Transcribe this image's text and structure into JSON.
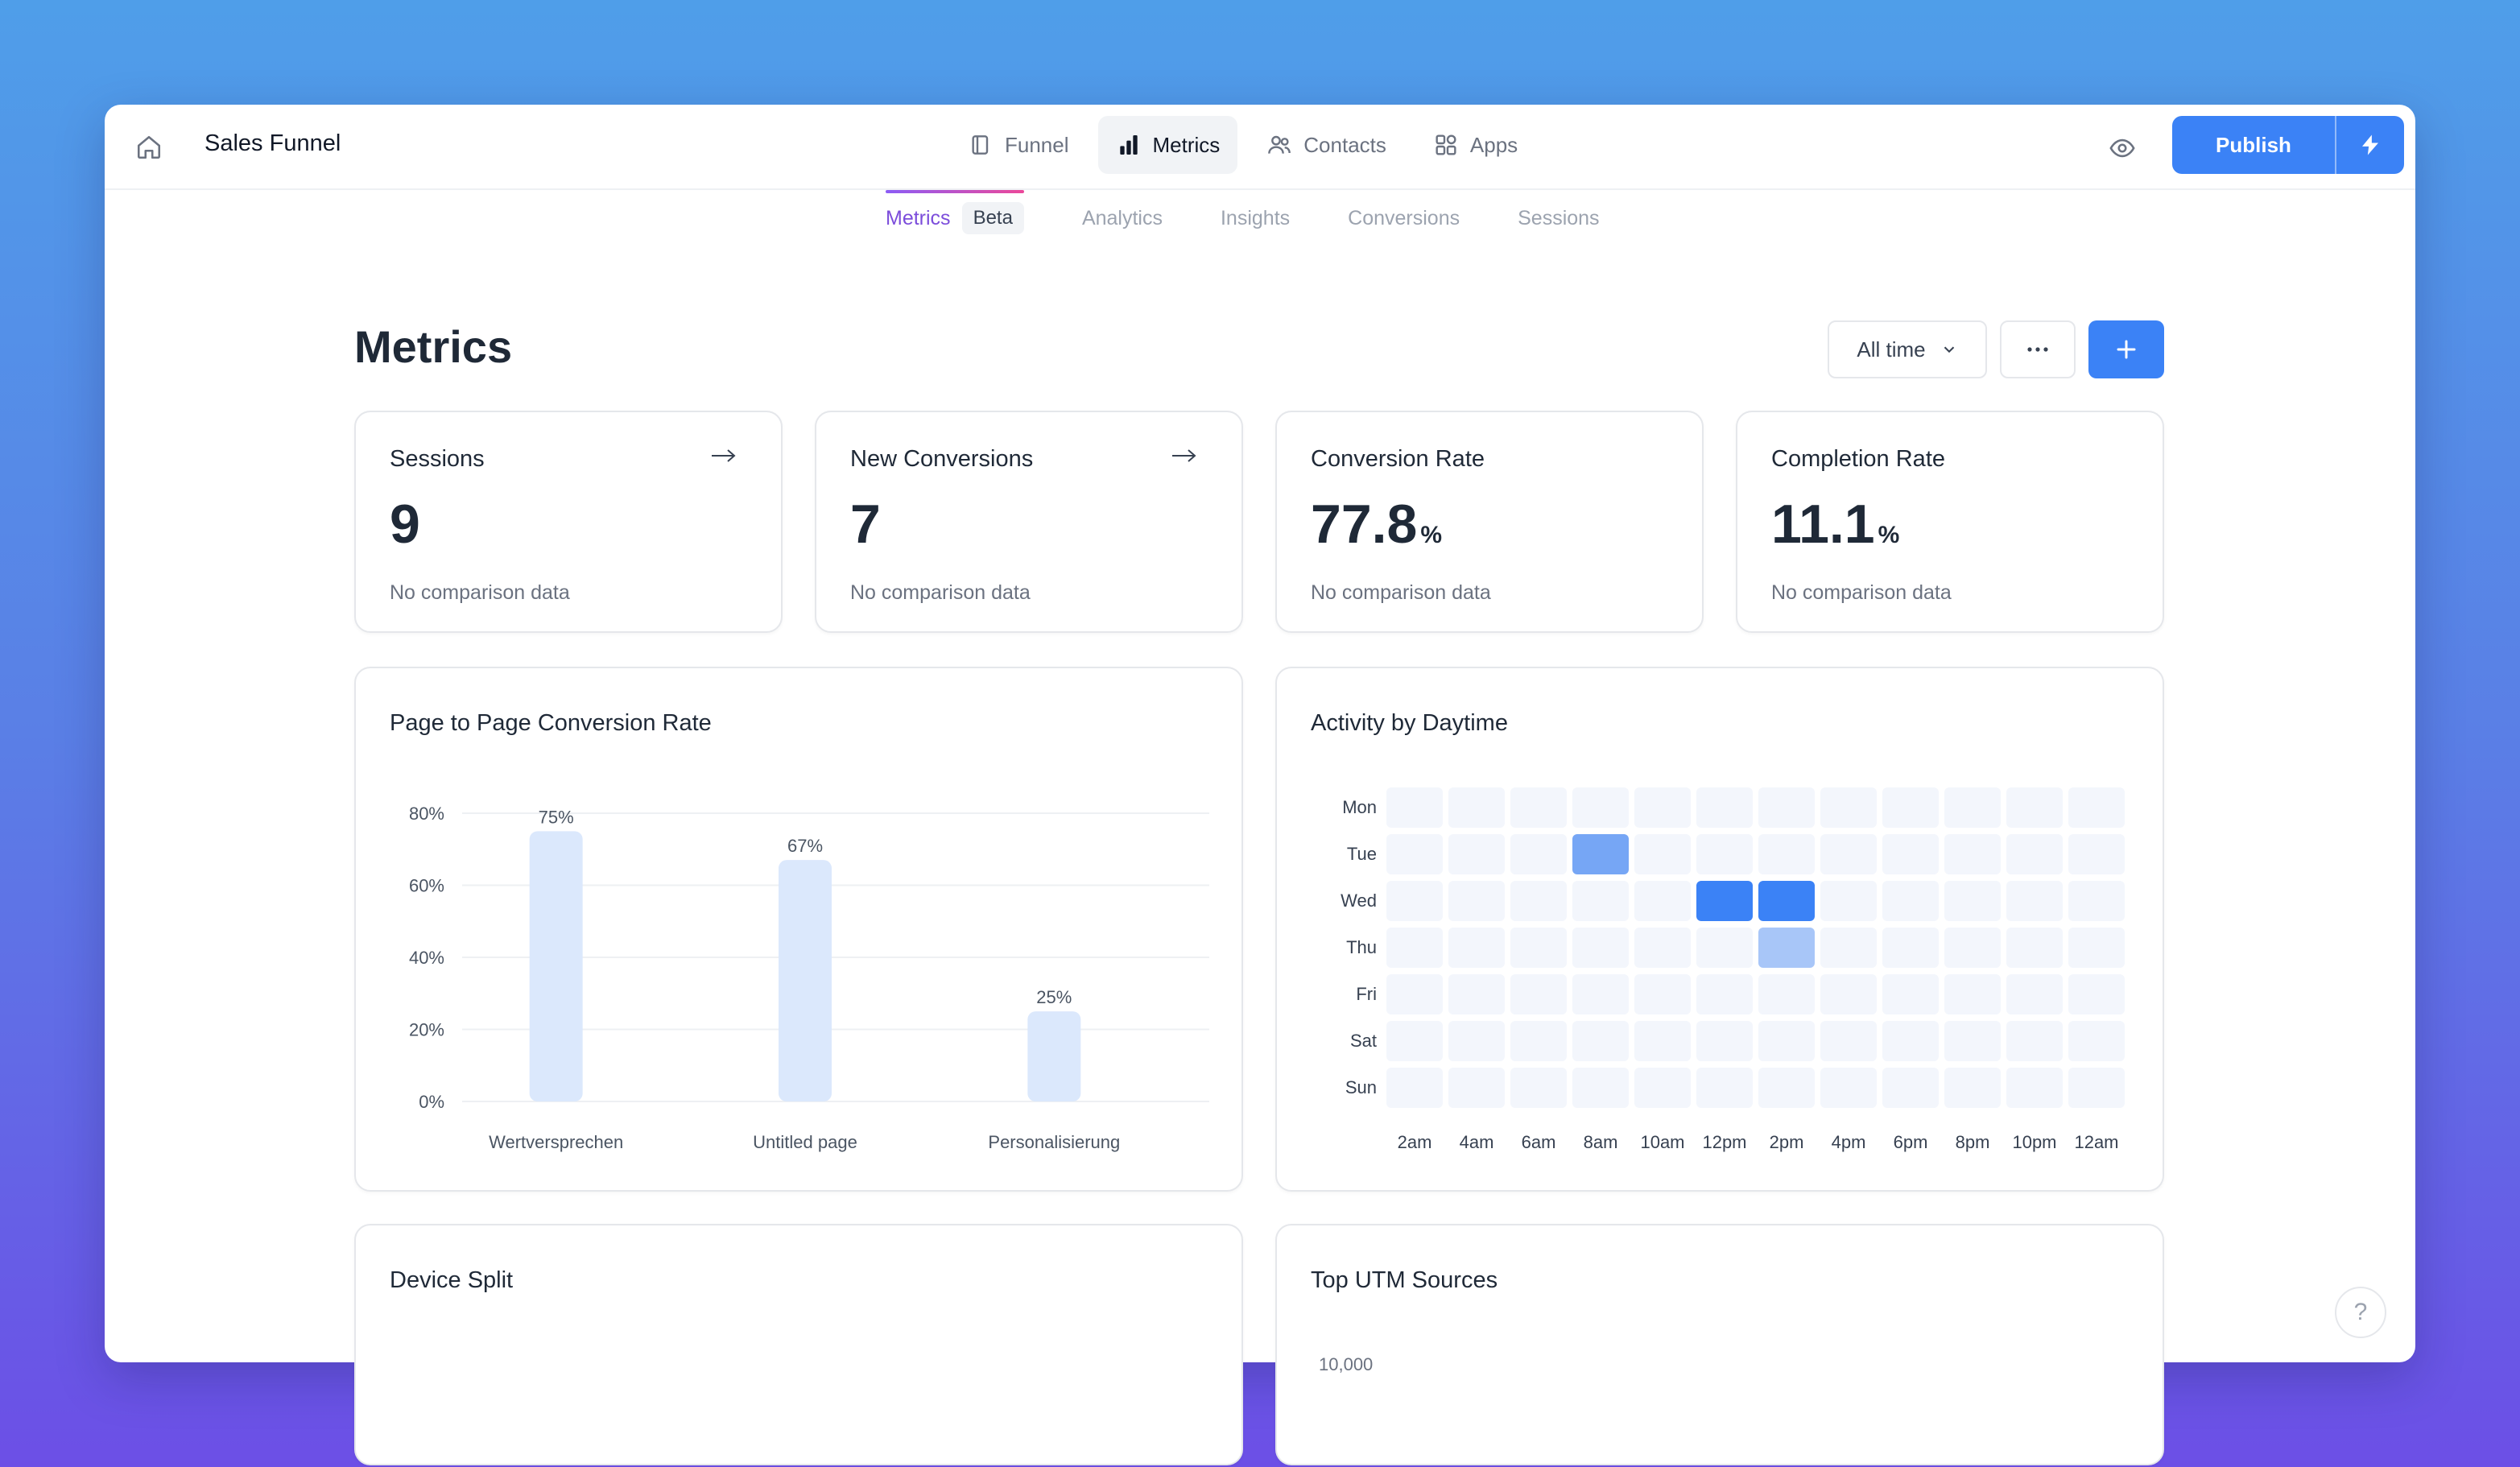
{
  "app": {
    "title": "Sales Funnel"
  },
  "nav": [
    {
      "label": "Funnel",
      "icon": "funnel-icon",
      "active": false
    },
    {
      "label": "Metrics",
      "icon": "bar-chart-icon",
      "active": true
    },
    {
      "label": "Contacts",
      "icon": "users-icon",
      "active": false
    },
    {
      "label": "Apps",
      "icon": "apps-icon",
      "active": false
    }
  ],
  "toolbar": {
    "publish_label": "Publish"
  },
  "subtabs": [
    {
      "label": "Metrics",
      "badge": "Beta",
      "active": true
    },
    {
      "label": "Analytics"
    },
    {
      "label": "Insights"
    },
    {
      "label": "Conversions"
    },
    {
      "label": "Sessions"
    }
  ],
  "page": {
    "title": "Metrics",
    "range": "All time"
  },
  "stats": [
    {
      "label": "Sessions",
      "value": "9",
      "unit": "",
      "sub": "No comparison data",
      "arrow": true
    },
    {
      "label": "New Conversions",
      "value": "7",
      "unit": "",
      "sub": "No comparison data",
      "arrow": true
    },
    {
      "label": "Conversion Rate",
      "value": "77.8",
      "unit": "%",
      "sub": "No comparison data",
      "arrow": false
    },
    {
      "label": "Completion Rate",
      "value": "11.1",
      "unit": "%",
      "sub": "No comparison data",
      "arrow": false
    }
  ],
  "panels": {
    "p2p_title": "Page to Page Conversion Rate",
    "activity_title": "Activity by Daytime",
    "device_title": "Device Split",
    "utm_title": "Top UTM Sources",
    "utm_tick": "10,000"
  },
  "chart_data": {
    "type": "bar",
    "title": "Page to Page Conversion Rate",
    "categories": [
      "Wertversprechen",
      "Untitled page",
      "Personalisierung"
    ],
    "values": [
      75,
      67,
      25
    ],
    "value_labels": [
      "75%",
      "67%",
      "25%"
    ],
    "yticks": [
      "0%",
      "20%",
      "40%",
      "60%",
      "80%"
    ],
    "ylim": [
      0,
      80
    ],
    "grid": true,
    "bar_color": "#dbe8fc"
  },
  "heatmap": {
    "title": "Activity by Daytime",
    "days": [
      "Mon",
      "Tue",
      "Wed",
      "Thu",
      "Fri",
      "Sat",
      "Sun"
    ],
    "hours": [
      "2am",
      "4am",
      "6am",
      "8am",
      "10am",
      "12pm",
      "2pm",
      "4pm",
      "6pm",
      "8pm",
      "10pm",
      "12am"
    ],
    "values": [
      [
        0,
        0,
        0,
        0,
        0,
        0,
        0,
        0,
        0,
        0,
        0,
        0
      ],
      [
        0,
        0,
        0,
        2,
        0,
        0,
        0,
        0,
        0,
        0,
        0,
        0
      ],
      [
        0,
        0,
        0,
        0,
        0,
        3,
        3,
        0,
        0,
        0,
        0,
        0
      ],
      [
        0,
        0,
        0,
        0,
        0,
        0,
        1,
        0,
        0,
        0,
        0,
        0
      ],
      [
        0,
        0,
        0,
        0,
        0,
        0,
        0,
        0,
        0,
        0,
        0,
        0
      ],
      [
        0,
        0,
        0,
        0,
        0,
        0,
        0,
        0,
        0,
        0,
        0,
        0
      ],
      [
        0,
        0,
        0,
        0,
        0,
        0,
        0,
        0,
        0,
        0,
        0,
        0
      ]
    ],
    "colors": [
      "#f3f6fc",
      "#a8c6f8",
      "#76a6f5",
      "#3b82f6"
    ]
  },
  "help": {
    "label": "?"
  }
}
